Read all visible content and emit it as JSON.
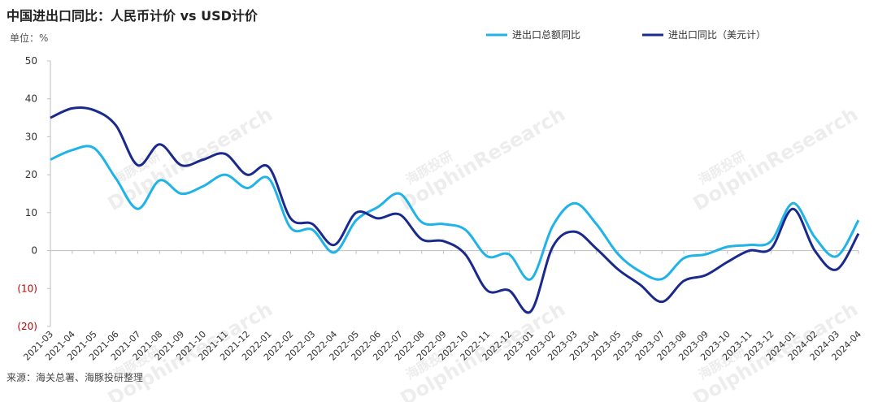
{
  "title": "中国进出口同比：人民币计价 vs USD计价",
  "unit_label": "单位：%",
  "source": "来源：海关总署、海豚投研整理",
  "watermark": {
    "name": "海豚投研",
    "brand": "DolphinResearch"
  },
  "colors": {
    "series1": "#1fb3e8",
    "series2": "#1a2a8c",
    "negative_tick": "#c00000",
    "axis": "#bfbfbf"
  },
  "chart_data": {
    "type": "line",
    "x": [
      "2021-03",
      "2021-04",
      "2021-05",
      "2021-06",
      "2021-07",
      "2021-08",
      "2021-09",
      "2021-10",
      "2021-11",
      "2021-12",
      "2022-01",
      "2022-02",
      "2022-03",
      "2022-04",
      "2022-05",
      "2022-06",
      "2022-07",
      "2022-08",
      "2022-09",
      "2022-10",
      "2022-11",
      "2022-12",
      "2023-01",
      "2023-02",
      "2023-03",
      "2023-04",
      "2023-05",
      "2023-06",
      "2023-07",
      "2023-08",
      "2023-09",
      "2023-10",
      "2023-11",
      "2023-12",
      "2024-01",
      "2024-02",
      "2024-03",
      "2024-04"
    ],
    "ylim": [
      -20,
      50
    ],
    "yticks": [
      50,
      40,
      30,
      20,
      10,
      0,
      -10,
      -20
    ],
    "ytick_labels": [
      "50",
      "40",
      "30",
      "20",
      "10",
      "0",
      "(10)",
      "(20)"
    ],
    "legend_position": "top-right",
    "series": [
      {
        "name": "进出口总额同比",
        "values": [
          24,
          26.5,
          27,
          19,
          11,
          18.5,
          15,
          17,
          20,
          16.5,
          19,
          6,
          5.5,
          -0.5,
          8,
          11.5,
          15,
          7.5,
          7,
          5.5,
          -1.5,
          -1,
          -7.5,
          6.5,
          12.5,
          7,
          -1,
          -5.5,
          -7.5,
          -2,
          -1,
          1,
          1.5,
          2.5,
          12.5,
          3.5,
          -1.5,
          8
        ]
      },
      {
        "name": "进出口同比（美元计）",
        "values": [
          35,
          37.5,
          37,
          33,
          22.5,
          28,
          22.5,
          24,
          25.5,
          20,
          22,
          8.5,
          7,
          1.5,
          10,
          8.5,
          9.5,
          3,
          2.5,
          -1,
          -10.5,
          -10.5,
          -16,
          1,
          5,
          0.5,
          -5,
          -9,
          -13.5,
          -8,
          -6.5,
          -3,
          0,
          0.5,
          11,
          0,
          -5,
          4.5
        ]
      }
    ]
  }
}
